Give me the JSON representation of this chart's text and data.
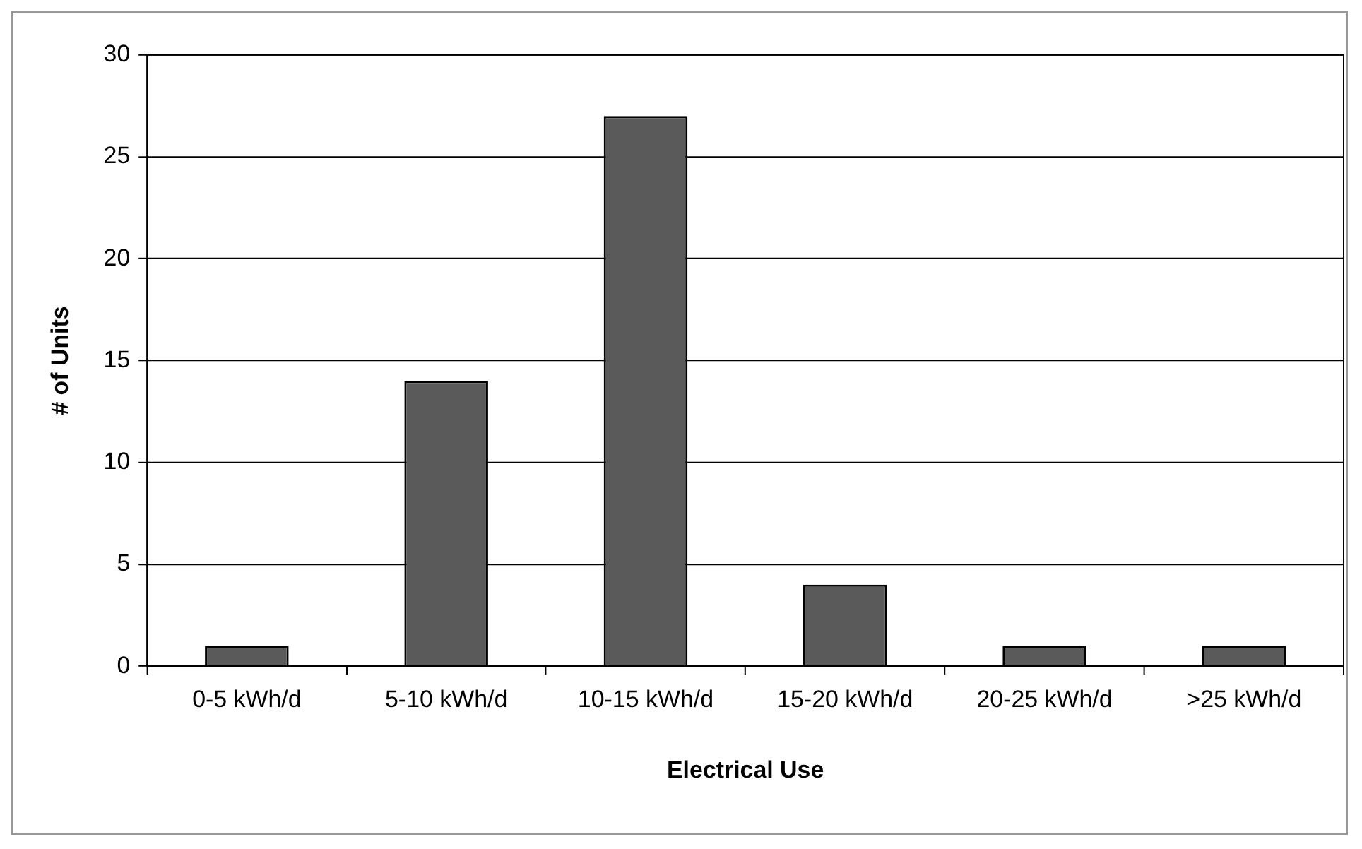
{
  "chart_data": {
    "type": "bar",
    "xlabel": "Electrical Use",
    "ylabel": "# of Units",
    "categories": [
      "0-5 kWh/d",
      "5-10 kWh/d",
      "10-15 kWh/d",
      "15-20 kWh/d",
      "20-25 kWh/d",
      ">25 kWh/d"
    ],
    "values": [
      1,
      14,
      27,
      4,
      1,
      1
    ],
    "color": "#5a5a5a",
    "ylim": [
      0,
      30
    ],
    "yticks": [
      0,
      5,
      10,
      15,
      20,
      25,
      30
    ],
    "grid": "y"
  }
}
